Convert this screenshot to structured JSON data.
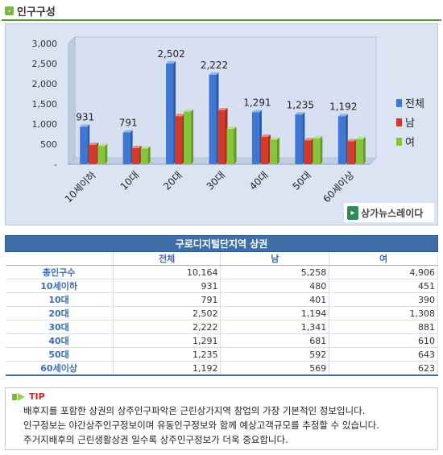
{
  "section": {
    "title": "인구구성"
  },
  "colors": {
    "total": "#3f78d4",
    "male": "#d23a2c",
    "female": "#86c43c",
    "header_bg": "#3e6fa8",
    "accent_green": "#4a9a3e"
  },
  "chart_data": {
    "type": "bar",
    "categories": [
      "10세이하",
      "10대",
      "20대",
      "30대",
      "40대",
      "50대",
      "60세이상"
    ],
    "series": [
      {
        "name": "전체",
        "values": [
          931,
          791,
          2502,
          2222,
          1291,
          1235,
          1192
        ]
      },
      {
        "name": "남",
        "values": [
          480,
          401,
          1194,
          1341,
          681,
          592,
          569
        ]
      },
      {
        "name": "여",
        "values": [
          451,
          390,
          1308,
          881,
          610,
          643,
          623
        ]
      }
    ],
    "data_labels": [
      "931",
      "791",
      "2,502",
      "2,222",
      "1,291",
      "1,235",
      "1,192"
    ],
    "yticks": [
      "-",
      "500",
      "1,000",
      "1,500",
      "2,000",
      "2,500",
      "3,000"
    ],
    "ylim": [
      0,
      3000
    ],
    "grid": false,
    "legend_position": "right",
    "watermark": "상가뉴스레이다"
  },
  "logo": {
    "text": "상가뉴스레이다"
  },
  "table": {
    "title": "구로디지털단지역 상권",
    "columns": [
      "전체",
      "남",
      "여"
    ],
    "rows": [
      {
        "label": "총인구수",
        "total": "10,164",
        "male": "5,258",
        "female": "4,906"
      },
      {
        "label": "10세이하",
        "total": "931",
        "male": "480",
        "female": "451"
      },
      {
        "label": "10대",
        "total": "791",
        "male": "401",
        "female": "390"
      },
      {
        "label": "20대",
        "total": "2,502",
        "male": "1,194",
        "female": "1,308"
      },
      {
        "label": "30대",
        "total": "2,222",
        "male": "1,341",
        "female": "881"
      },
      {
        "label": "40대",
        "total": "1,291",
        "male": "681",
        "female": "610"
      },
      {
        "label": "50대",
        "total": "1,235",
        "male": "592",
        "female": "643"
      },
      {
        "label": "60세이상",
        "total": "1,192",
        "male": "569",
        "female": "623"
      }
    ]
  },
  "tip": {
    "label": "TIP",
    "lines": [
      "배후지를 포함한 상권의 상주인구파악은 근린상가지역 창업의 가장 기본적인 정보입니다.",
      "인구정보는 야간상주인구정보이며 유동인구정보와 함께 예상고객규모를 추정할 수 있습니다.",
      "주거지배후의 근린생활상권 일수록 상주인구정보가 더욱 중요합니다."
    ]
  }
}
